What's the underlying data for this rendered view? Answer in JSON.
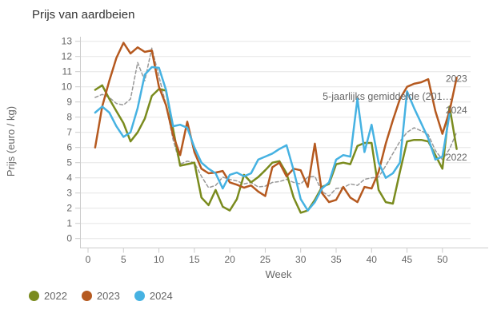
{
  "title": "Prijs van aardbeien",
  "legend": {
    "items": [
      {
        "label": "2022",
        "color": "#7a8b1e"
      },
      {
        "label": "2023",
        "color": "#b5591f"
      },
      {
        "label": "2024",
        "color": "#46b2e2"
      }
    ]
  },
  "chart_data": {
    "type": "line",
    "title": "Prijs van aardbeien",
    "xlabel": "Week",
    "ylabel": "Prijs (euro / kg)",
    "xlim": [
      0,
      53
    ],
    "ylim": [
      0,
      13
    ],
    "x_ticks": [
      0,
      5,
      10,
      15,
      20,
      25,
      30,
      35,
      40,
      45,
      50
    ],
    "y_ticks": [
      0,
      1,
      2,
      3,
      4,
      5,
      6,
      7,
      8,
      9,
      10,
      11,
      12,
      13
    ],
    "grid": true,
    "legend_position": "bottom",
    "annotation": {
      "text": "5-jaarlijks gemiddelde (201…",
      "week": 33.1,
      "value": 9.35
    },
    "end_labels": [
      {
        "text": "2023",
        "value": 10.55
      },
      {
        "text": "2024",
        "value": 8.45
      },
      {
        "text": "2022",
        "value": 5.35
      }
    ],
    "start_week": 1,
    "series": [
      {
        "name": "5-jaarlijks gemiddelde (201…",
        "color": "#999999",
        "dashed": true,
        "width": 1.5,
        "values": [
          9.3,
          9.5,
          9.3,
          8.9,
          8.8,
          9.2,
          11.6,
          10.4,
          12.55,
          10.7,
          8.8,
          6.5,
          4.9,
          5.1,
          5.0,
          4.1,
          3.35,
          3.5,
          4.05,
          3.9,
          3.8,
          3.6,
          3.7,
          3.4,
          3.45,
          3.7,
          3.75,
          3.9,
          3.7,
          3.6,
          4.05,
          4.1,
          3.1,
          2.8,
          3.3,
          3.35,
          3.6,
          3.5,
          3.9,
          4.0,
          4.05,
          4.8,
          5.6,
          6.4,
          7.0,
          7.3,
          7.1,
          6.85,
          5.8,
          5.2,
          5.9,
          7.0
        ]
      },
      {
        "name": "2022",
        "color": "#7a8b1e",
        "dashed": false,
        "width": 2.5,
        "values": [
          9.8,
          10.1,
          9.2,
          8.4,
          7.6,
          6.4,
          7.0,
          7.9,
          9.4,
          9.85,
          9.75,
          7.2,
          4.8,
          4.9,
          5.0,
          2.7,
          2.2,
          3.2,
          2.1,
          1.85,
          2.6,
          4.2,
          3.7,
          4.05,
          4.5,
          5.0,
          5.1,
          4.3,
          2.7,
          1.7,
          1.85,
          2.55,
          3.4,
          3.6,
          4.9,
          5.0,
          4.9,
          6.1,
          6.3,
          6.3,
          3.2,
          2.4,
          2.3,
          4.4,
          6.4,
          6.5,
          6.5,
          6.4,
          5.5,
          4.6,
          8.7,
          5.9
        ]
      },
      {
        "name": "2023",
        "color": "#b5591f",
        "dashed": false,
        "width": 2.5,
        "values": [
          6.0,
          8.7,
          10.4,
          11.9,
          12.9,
          12.2,
          12.6,
          12.3,
          12.4,
          10.0,
          8.8,
          6.8,
          5.5,
          7.7,
          5.7,
          4.6,
          4.3,
          4.35,
          4.45,
          3.7,
          3.55,
          3.35,
          3.5,
          3.1,
          2.8,
          4.7,
          5.0,
          4.1,
          4.6,
          4.5,
          3.4,
          6.25,
          3.0,
          2.4,
          2.55,
          3.4,
          2.7,
          2.4,
          3.4,
          3.3,
          4.4,
          6.25,
          7.8,
          9.2,
          10.0,
          10.2,
          10.3,
          10.5,
          8.4,
          6.9,
          8.4,
          10.6
        ]
      },
      {
        "name": "2024",
        "color": "#46b2e2",
        "dashed": false,
        "width": 2.5,
        "values": [
          8.3,
          8.7,
          8.3,
          7.4,
          6.7,
          7.0,
          8.6,
          10.8,
          11.3,
          11.25,
          9.8,
          7.4,
          7.5,
          7.3,
          6.0,
          5.0,
          4.6,
          4.3,
          3.3,
          4.2,
          4.35,
          4.1,
          4.3,
          5.2,
          5.4,
          5.6,
          5.9,
          6.15,
          4.5,
          2.6,
          1.85,
          2.4,
          3.3,
          3.7,
          5.2,
          5.5,
          5.4,
          9.2,
          5.7,
          7.5,
          5.0,
          4.0,
          4.3,
          5.0,
          9.7,
          8.6,
          7.6,
          6.6,
          5.2,
          5.4,
          8.2
        ]
      }
    ]
  }
}
